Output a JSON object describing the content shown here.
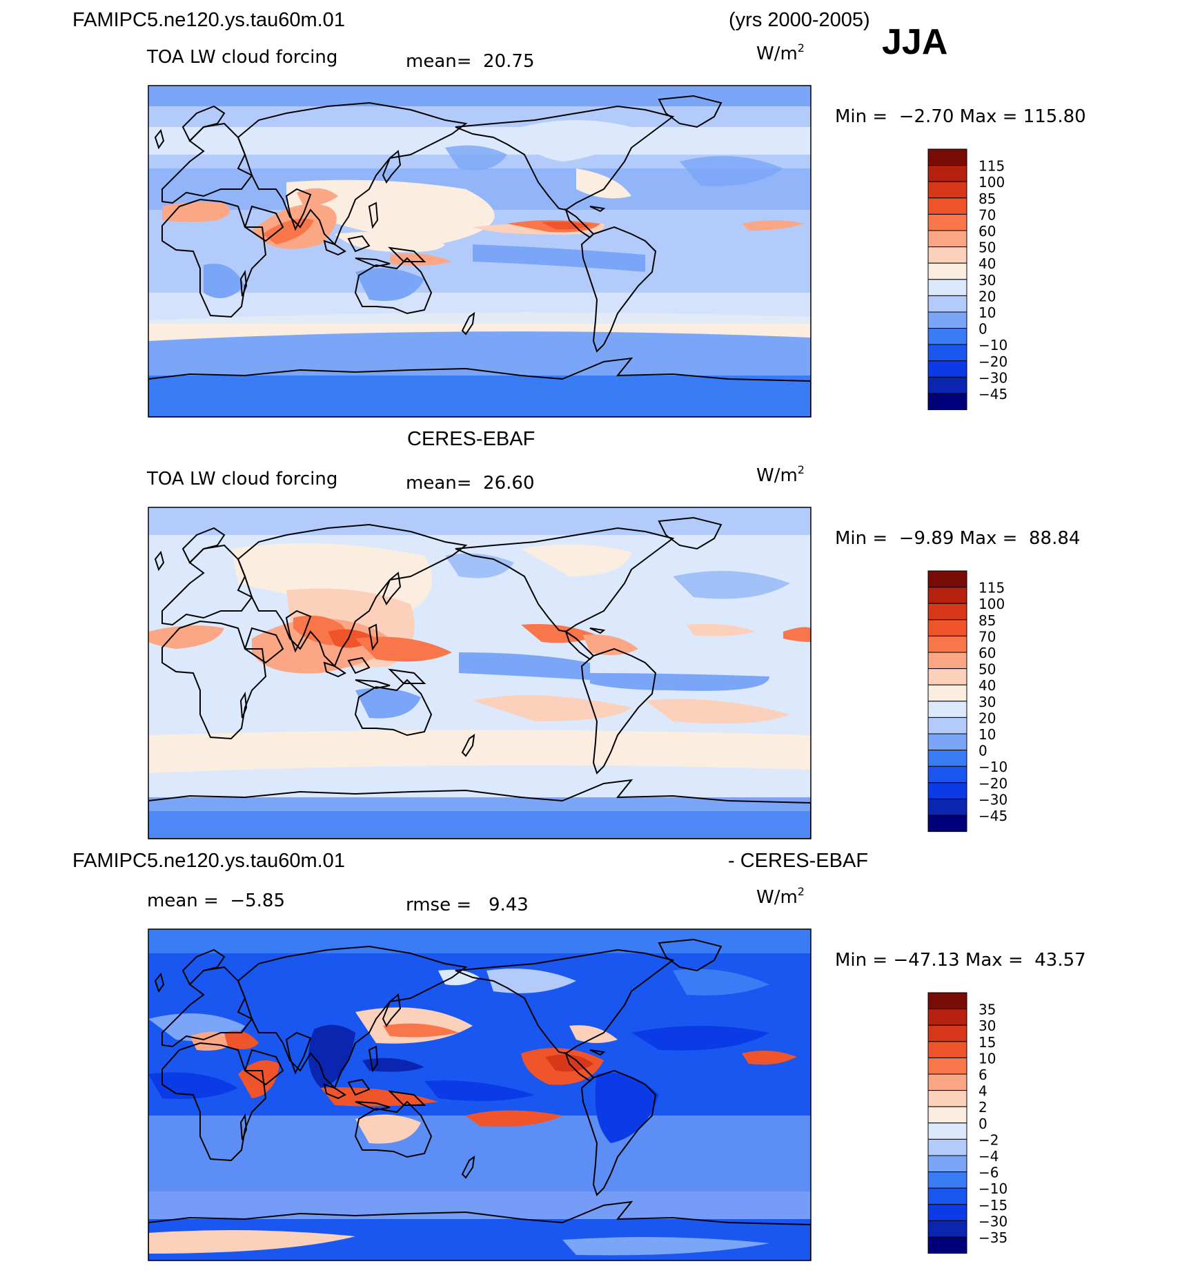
{
  "header": {
    "case_name": "FAMIPC5.ne120.ys.tau60m.01",
    "years": "(yrs 2000-2005)",
    "season": "JJA"
  },
  "colors": {
    "land_outline": "#000000",
    "model_scale": [
      "#00007a",
      "#0a25b0",
      "#0a3be6",
      "#1a56f0",
      "#3a7cf5",
      "#7ba6f8",
      "#b3cbfa",
      "#dce8fb",
      "#fbeee0",
      "#fcd1bb",
      "#fba785",
      "#f8764a",
      "#f0542a",
      "#d8381a",
      "#b5200f",
      "#7a0c07"
    ],
    "diff_scale": [
      "#00007a",
      "#0a25b0",
      "#0a3be6",
      "#1a56f0",
      "#3a7cf5",
      "#7ba6f8",
      "#b3cbfa",
      "#dce8fb",
      "#fbeee0",
      "#fcd1bb",
      "#fba785",
      "#f8764a",
      "#f0542a",
      "#d8381a",
      "#b5200f",
      "#7a0c07"
    ]
  },
  "panels": [
    {
      "id": "model",
      "title": "",
      "title_right": "",
      "left_label": "TOA LW cloud forcing",
      "mean_text": "mean=  20.75",
      "units": "W/m",
      "units_sup": "2",
      "minmax": "Min =  −2.70 Max = 115.80",
      "legend_labels": [
        "115",
        "100",
        "85",
        "70",
        "60",
        "50",
        "40",
        "30",
        "20",
        "10",
        "0",
        "−10",
        "−20",
        "−30",
        "−45"
      ],
      "field": "model"
    },
    {
      "id": "obs",
      "title": "CERES-EBAF",
      "title_right": "",
      "left_label": "TOA LW cloud forcing",
      "mean_text": "mean=  26.60",
      "units": "W/m",
      "units_sup": "2",
      "minmax": "Min =  −9.89 Max =  88.84",
      "legend_labels": [
        "115",
        "100",
        "85",
        "70",
        "60",
        "50",
        "40",
        "30",
        "20",
        "10",
        "0",
        "−10",
        "−20",
        "−30",
        "−45"
      ],
      "field": "obs"
    },
    {
      "id": "diff",
      "title": "FAMIPC5.ne120.ys.tau60m.01",
      "title_right": "- CERES-EBAF",
      "left_label": "mean =  −5.85",
      "mean_text": "rmse =   9.43",
      "units": "W/m",
      "units_sup": "2",
      "minmax": "Min = −47.13 Max =  43.57",
      "legend_labels": [
        "35",
        "30",
        "15",
        "10",
        "6",
        "4",
        "2",
        "0",
        "−2",
        "−4",
        "−6",
        "−10",
        "−15",
        "−30",
        "−35"
      ],
      "field": "diff"
    }
  ]
}
